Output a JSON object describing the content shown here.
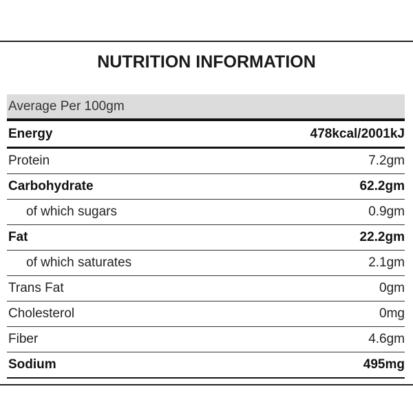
{
  "title": "NUTRITION INFORMATION",
  "table": {
    "header": "Average Per 100gm",
    "rows": [
      {
        "label": "Energy",
        "value": "478kcal/2001kJ",
        "bold": true,
        "indent": false
      },
      {
        "label": "Protein",
        "value": "7.2gm",
        "bold": false,
        "indent": false
      },
      {
        "label": "Carbohydrate",
        "value": "62.2gm",
        "bold": true,
        "indent": false
      },
      {
        "label": "of which sugars",
        "value": "0.9gm",
        "bold": false,
        "indent": true
      },
      {
        "label": "Fat",
        "value": "22.2gm",
        "bold": true,
        "indent": false
      },
      {
        "label": "of which saturates",
        "value": "2.1gm",
        "bold": false,
        "indent": true
      },
      {
        "label": "Trans Fat",
        "value": "0gm",
        "bold": false,
        "indent": false
      },
      {
        "label": "Cholesterol",
        "value": "0mg",
        "bold": false,
        "indent": false
      },
      {
        "label": "Fiber",
        "value": "4.6gm",
        "bold": false,
        "indent": false
      },
      {
        "label": "Sodium",
        "value": "495mg",
        "bold": true,
        "indent": false
      }
    ]
  }
}
